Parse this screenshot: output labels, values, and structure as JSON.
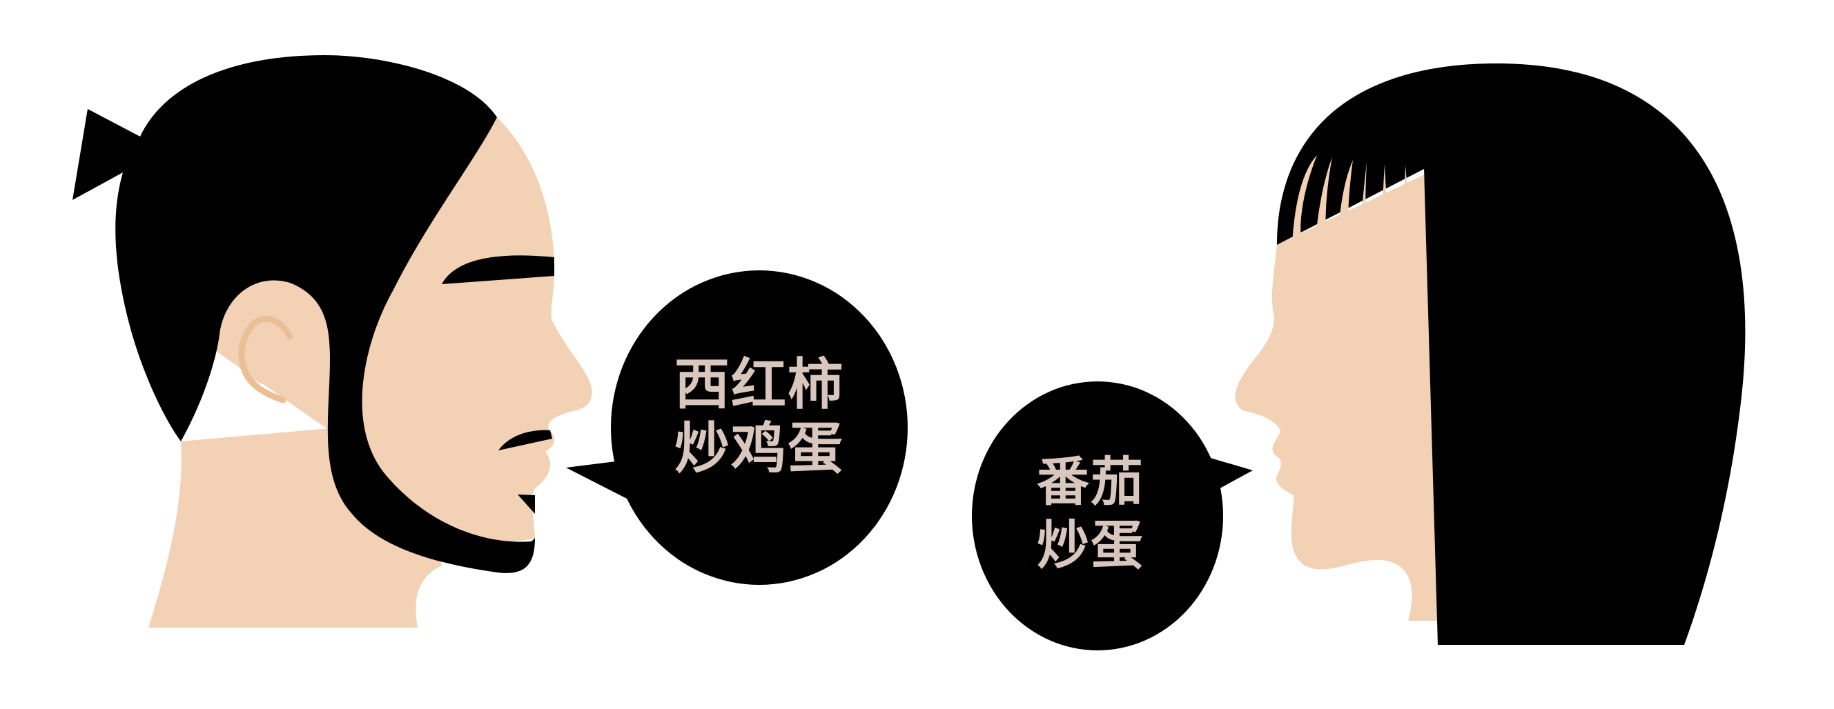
{
  "colors": {
    "background": "#ffffff",
    "skin": "#f2d1b5",
    "skin_line": "#ebbf96",
    "hair": "#000000",
    "bubble": "#000000",
    "bubble_text": "#d9c7be"
  },
  "left_speech": {
    "line1": "西红柿",
    "line2": "炒鸡蛋"
  },
  "right_speech": {
    "line1": "番茄",
    "line2": "炒蛋"
  }
}
